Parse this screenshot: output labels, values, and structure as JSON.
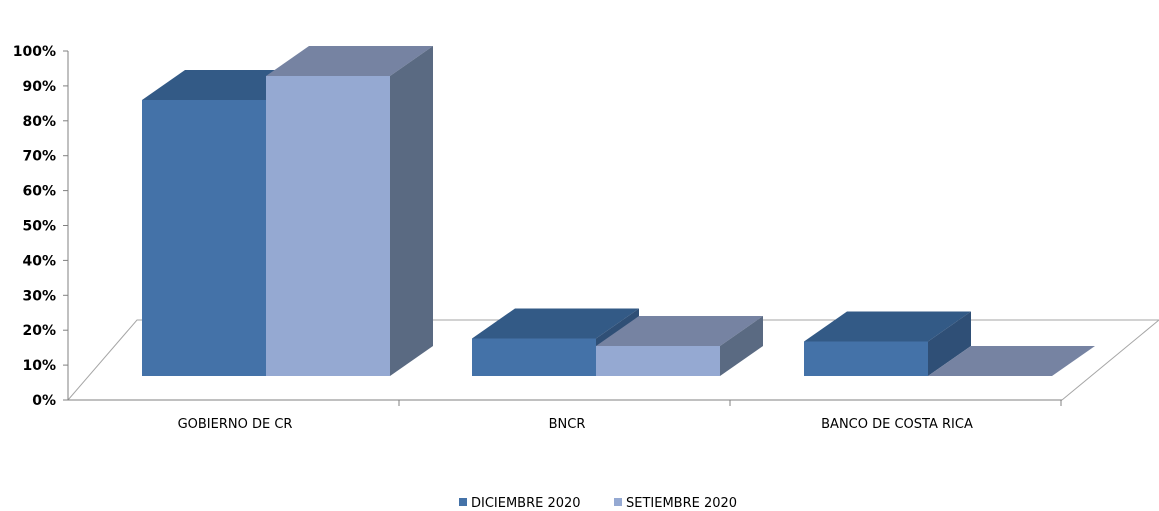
{
  "chart_data": {
    "type": "bar",
    "categories": [
      "GOBIERNO DE CR",
      "BNCR",
      "BANCO DE COSTA RICA"
    ],
    "series": [
      {
        "name": "DICIEMBRE 2020",
        "values": [
          92,
          12.5,
          11.5
        ]
      },
      {
        "name": "SETIEMBRE 2020",
        "values": [
          100,
          10,
          0
        ]
      }
    ],
    "y_ticks": [
      "0%",
      "10%",
      "20%",
      "30%",
      "40%",
      "50%",
      "60%",
      "70%",
      "80%",
      "90%",
      "100%"
    ],
    "ylim": [
      0,
      100
    ],
    "title": "",
    "xlabel": "",
    "ylabel": "",
    "grid": false,
    "legend_position": "bottom",
    "style": "3d-clustered-column",
    "colors": {
      "series_front": [
        "#4472a8",
        "#95a9d2"
      ],
      "series_top": [
        "#335a86",
        "#7683a2"
      ],
      "series_side": [
        "#2f4f76",
        "#5a6a82"
      ],
      "floor_line": "#a6a6a6",
      "axis": "#808080"
    }
  }
}
